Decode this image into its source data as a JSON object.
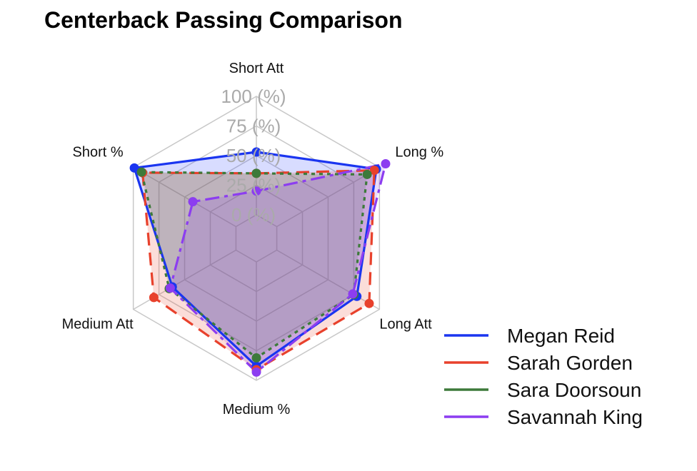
{
  "chart_data": {
    "type": "radar",
    "title": "Centerback Passing Comparison",
    "axes": [
      "Short Att",
      "Long %",
      "Long Att",
      "Medium %",
      "Medium Att",
      "Short %"
    ],
    "radial_ticks": [
      "0 (%)",
      "25 (%)",
      "50 (%)",
      "75 (%)",
      "100 (%)"
    ],
    "rlim": [
      0,
      100
    ],
    "series": [
      {
        "name": "Megan Reid",
        "color": "#1a35f0",
        "dash": "",
        "fill": "rgba(40,60,255,0.18)",
        "values": [
          53,
          97,
          78,
          88,
          62,
          99
        ]
      },
      {
        "name": "Sarah Gorden",
        "color": "#e8412c",
        "dash": "18 10",
        "fill": "rgba(232,65,44,0.18)",
        "values": [
          35,
          95,
          90,
          91,
          80,
          91
        ]
      },
      {
        "name": "Sara Doorsoun",
        "color": "#3d7a3a",
        "dash": "5 6",
        "fill": "rgba(61,122,58,0.18)",
        "values": [
          35,
          88,
          75,
          81,
          65,
          92
        ]
      },
      {
        "name": "Savannah King",
        "color": "#8c3df0",
        "dash": "20 7 5 7",
        "fill": "rgba(140,61,240,0.18)",
        "values": [
          20,
          106,
          74,
          93,
          64,
          42
        ]
      }
    ],
    "legend_position": "bottom-right"
  }
}
